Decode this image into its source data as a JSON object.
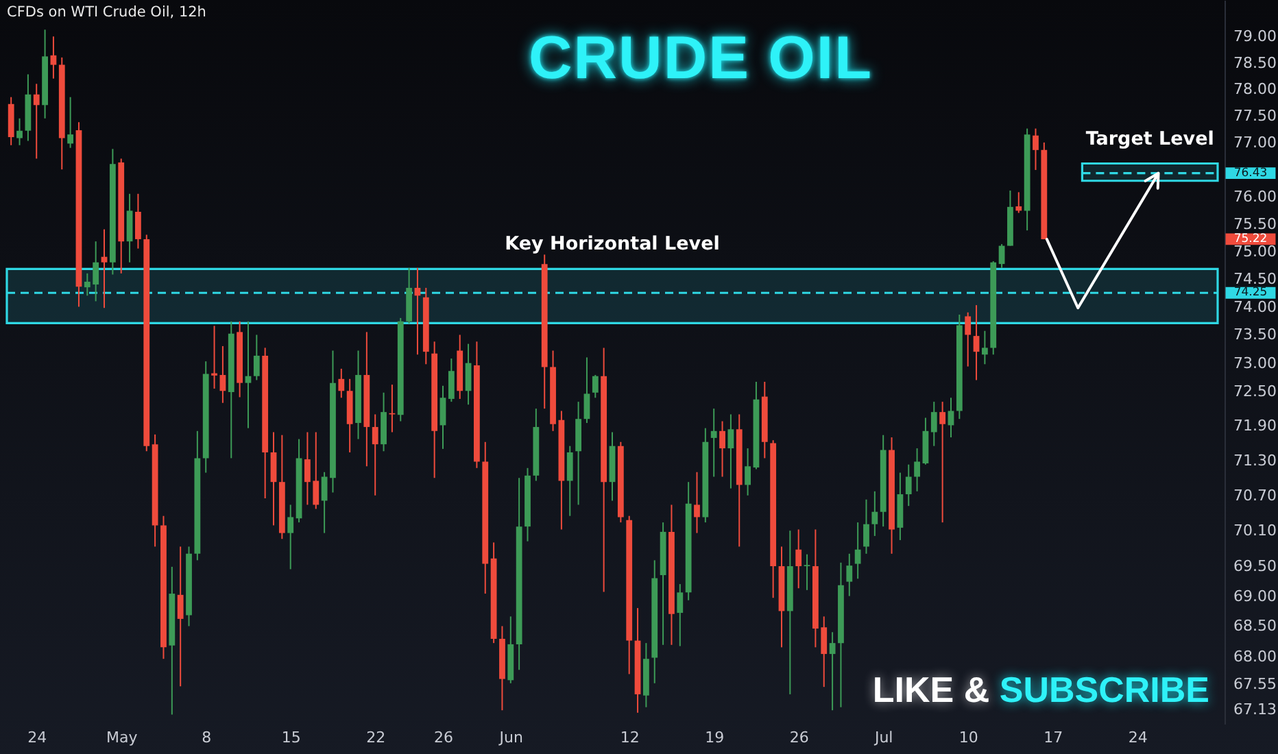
{
  "chart_data": {
    "type": "candlestick",
    "title": "CRUDE OIL",
    "subtitle": "CFDs on WTI Crude Oil, 12h",
    "categories": [
      null,
      null,
      null,
      "24",
      null,
      null,
      null,
      null,
      null,
      null,
      null,
      null,
      null,
      "May",
      null,
      null,
      null,
      null,
      null,
      null,
      null,
      null,
      null,
      "8",
      null,
      null,
      null,
      null,
      null,
      null,
      null,
      null,
      null,
      "15",
      null,
      null,
      null,
      null,
      null,
      null,
      null,
      null,
      null,
      "22",
      null,
      null,
      null,
      null,
      null,
      null,
      null,
      "26",
      null,
      null,
      null,
      null,
      null,
      null,
      null,
      "Jun",
      null,
      null,
      null,
      null,
      null,
      null,
      null,
      null,
      null,
      null,
      null,
      null,
      null,
      "12",
      null,
      null,
      null,
      null,
      null,
      null,
      null,
      null,
      null,
      "19",
      null,
      null,
      null,
      null,
      null,
      null,
      null,
      null,
      null,
      "26",
      null,
      null,
      null,
      null,
      null,
      null,
      null,
      null,
      null,
      "Jul",
      null,
      null,
      null,
      null,
      null,
      null,
      null,
      null,
      null,
      "10",
      null,
      null,
      null,
      null,
      null,
      null,
      null,
      null,
      null,
      "17",
      null,
      null,
      null,
      null,
      null,
      null,
      null,
      null,
      null,
      "24",
      null,
      null,
      null,
      null,
      null,
      null,
      null,
      null,
      null
    ],
    "ohlc": [
      [
        77.72,
        77.85,
        76.95,
        77.1
      ],
      [
        77.08,
        77.45,
        76.95,
        77.22
      ],
      [
        77.22,
        78.28,
        77.03,
        77.9
      ],
      [
        77.9,
        78.1,
        76.7,
        77.7
      ],
      [
        77.7,
        79.13,
        77.45,
        78.62
      ],
      [
        78.64,
        79.0,
        78.2,
        78.46
      ],
      [
        78.46,
        78.6,
        76.5,
        77.08
      ],
      [
        76.98,
        77.85,
        76.9,
        77.15
      ],
      [
        77.23,
        77.38,
        74.0,
        74.36
      ],
      [
        74.35,
        74.6,
        74.2,
        74.45
      ],
      [
        74.4,
        75.18,
        74.1,
        74.8
      ],
      [
        74.9,
        75.4,
        73.98,
        74.8
      ],
      [
        74.8,
        76.88,
        74.58,
        76.6
      ],
      [
        76.63,
        76.7,
        74.6,
        75.18
      ],
      [
        75.18,
        76.05,
        74.8,
        75.74
      ],
      [
        75.72,
        76.05,
        75.05,
        75.22
      ],
      [
        75.22,
        75.3,
        71.46,
        71.55
      ],
      [
        71.58,
        71.75,
        69.83,
        70.19
      ],
      [
        70.19,
        70.35,
        67.96,
        68.15
      ],
      [
        68.18,
        69.49,
        67.05,
        69.04
      ],
      [
        69.02,
        69.83,
        67.51,
        68.62
      ],
      [
        68.68,
        69.83,
        68.5,
        69.71
      ],
      [
        69.71,
        71.81,
        69.6,
        71.34
      ],
      [
        71.34,
        73.03,
        71.09,
        72.81
      ],
      [
        72.82,
        73.66,
        72.55,
        72.78
      ],
      [
        72.79,
        73.3,
        72.3,
        72.51
      ],
      [
        72.49,
        73.74,
        71.34,
        73.52
      ],
      [
        73.55,
        73.74,
        72.4,
        72.65
      ],
      [
        72.65,
        73.74,
        71.86,
        72.77
      ],
      [
        72.77,
        73.5,
        72.7,
        73.13
      ],
      [
        73.13,
        73.27,
        70.65,
        71.44
      ],
      [
        71.44,
        71.79,
        70.19,
        70.93
      ],
      [
        70.93,
        71.74,
        69.96,
        70.06
      ],
      [
        70.06,
        70.54,
        69.45,
        70.33
      ],
      [
        70.31,
        71.67,
        70.24,
        71.34
      ],
      [
        71.32,
        71.79,
        70.54,
        70.93
      ],
      [
        70.95,
        71.79,
        70.47,
        70.54
      ],
      [
        70.61,
        71.1,
        70.06,
        71.02
      ],
      [
        71.0,
        73.22,
        70.75,
        72.65
      ],
      [
        72.72,
        72.9,
        72.39,
        72.51
      ],
      [
        72.51,
        72.72,
        71.44,
        71.93
      ],
      [
        71.95,
        73.22,
        71.67,
        72.79
      ],
      [
        72.79,
        73.55,
        71.2,
        71.88
      ],
      [
        71.88,
        72.1,
        70.7,
        71.58
      ],
      [
        71.58,
        72.48,
        71.46,
        72.14
      ],
      [
        72.12,
        72.62,
        71.79,
        72.1
      ],
      [
        72.09,
        73.8,
        71.98,
        73.74
      ],
      [
        73.74,
        74.7,
        73.7,
        74.34
      ],
      [
        74.34,
        74.7,
        73.15,
        74.2
      ],
      [
        74.17,
        74.34,
        72.98,
        73.2
      ],
      [
        73.17,
        73.38,
        71.0,
        71.81
      ],
      [
        71.91,
        72.6,
        71.5,
        72.39
      ],
      [
        72.37,
        73.08,
        72.32,
        72.86
      ],
      [
        73.22,
        73.5,
        72.37,
        72.51
      ],
      [
        72.51,
        73.34,
        72.27,
        73.0
      ],
      [
        72.96,
        73.38,
        71.17,
        71.28
      ],
      [
        71.28,
        71.62,
        69.04,
        69.54
      ],
      [
        69.63,
        69.9,
        68.22,
        68.29
      ],
      [
        68.29,
        68.5,
        67.12,
        67.63
      ],
      [
        67.61,
        68.66,
        67.56,
        68.2
      ],
      [
        68.2,
        71.0,
        67.78,
        70.17
      ],
      [
        70.17,
        71.17,
        69.92,
        71.04
      ],
      [
        71.04,
        72.2,
        70.95,
        71.88
      ],
      [
        74.77,
        74.94,
        72.2,
        72.93
      ],
      [
        72.93,
        73.22,
        71.81,
        71.93
      ],
      [
        72.0,
        72.16,
        70.12,
        70.95
      ],
      [
        70.95,
        71.55,
        70.35,
        71.44
      ],
      [
        71.46,
        72.32,
        70.54,
        72.02
      ],
      [
        72.02,
        73.1,
        71.95,
        72.46
      ],
      [
        72.48,
        72.79,
        72.39,
        72.77
      ],
      [
        72.77,
        73.27,
        69.07,
        70.93
      ],
      [
        70.93,
        71.79,
        70.61,
        71.55
      ],
      [
        71.55,
        71.62,
        70.24,
        70.33
      ],
      [
        70.28,
        70.35,
        67.71,
        68.26
      ],
      [
        68.26,
        68.8,
        67.08,
        67.38
      ],
      [
        67.36,
        68.22,
        67.17,
        67.96
      ],
      [
        67.98,
        69.6,
        67.56,
        69.3
      ],
      [
        69.35,
        70.24,
        68.19,
        70.08
      ],
      [
        70.08,
        70.54,
        68.19,
        68.7
      ],
      [
        68.72,
        69.2,
        68.17,
        69.06
      ],
      [
        69.06,
        70.93,
        68.93,
        70.56
      ],
      [
        70.54,
        71.1,
        70.06,
        70.33
      ],
      [
        70.33,
        71.86,
        70.24,
        71.62
      ],
      [
        71.69,
        72.2,
        71.02,
        71.81
      ],
      [
        71.81,
        71.98,
        71.02,
        71.51
      ],
      [
        71.51,
        72.1,
        70.82,
        71.84
      ],
      [
        71.84,
        72.1,
        69.83,
        70.88
      ],
      [
        70.88,
        71.51,
        70.7,
        71.2
      ],
      [
        71.18,
        72.67,
        71.15,
        72.36
      ],
      [
        72.41,
        72.67,
        71.34,
        71.62
      ],
      [
        71.6,
        71.65,
        68.97,
        69.5
      ],
      [
        69.5,
        69.83,
        68.15,
        68.75
      ],
      [
        68.75,
        70.1,
        67.38,
        69.5
      ],
      [
        69.78,
        70.12,
        69.13,
        69.5
      ],
      [
        69.5,
        69.7,
        69.1,
        69.52
      ],
      [
        69.5,
        70.12,
        68.15,
        68.46
      ],
      [
        68.48,
        68.66,
        67.5,
        68.04
      ],
      [
        68.04,
        68.4,
        67.12,
        68.22
      ],
      [
        68.22,
        69.56,
        67.17,
        69.18
      ],
      [
        69.24,
        69.71,
        69.0,
        69.51
      ],
      [
        69.54,
        70.24,
        69.29,
        69.78
      ],
      [
        69.83,
        70.63,
        69.71,
        70.21
      ],
      [
        70.21,
        70.77,
        70.01,
        70.42
      ],
      [
        70.42,
        71.74,
        70.17,
        71.48
      ],
      [
        71.48,
        71.7,
        69.71,
        70.12
      ],
      [
        70.15,
        71.09,
        69.94,
        70.72
      ],
      [
        70.72,
        71.23,
        70.52,
        71.02
      ],
      [
        71.02,
        71.51,
        70.77,
        71.28
      ],
      [
        71.25,
        72.04,
        71.23,
        71.81
      ],
      [
        71.79,
        72.32,
        71.55,
        72.14
      ],
      [
        72.14,
        72.32,
        70.24,
        71.93
      ],
      [
        71.91,
        72.39,
        71.7,
        72.16
      ],
      [
        72.16,
        73.86,
        72.02,
        73.67
      ],
      [
        73.83,
        73.9,
        72.94,
        73.5
      ],
      [
        73.48,
        74.03,
        72.7,
        73.2
      ],
      [
        73.15,
        73.57,
        72.98,
        73.27
      ],
      [
        73.27,
        74.82,
        73.15,
        74.8
      ],
      [
        74.77,
        75.13,
        74.7,
        75.1
      ],
      [
        75.1,
        76.11,
        75.1,
        75.81
      ],
      [
        75.82,
        76.08,
        75.7,
        75.74
      ],
      [
        75.74,
        77.26,
        75.38,
        77.15
      ],
      [
        77.13,
        77.26,
        76.49,
        76.86
      ],
      [
        76.86,
        77.0,
        75.22,
        75.22
      ],
      null,
      null,
      null,
      null,
      null,
      null,
      null,
      null,
      null,
      null,
      null,
      null,
      null,
      null,
      null,
      null,
      null,
      null,
      null,
      null
    ],
    "colors": [
      "#ef4b3c",
      "#3d9b57",
      "#3d9b57",
      "#ef4b3c",
      "#3d9b57",
      "#ef4b3c",
      "#ef4b3c",
      "#3d9b57",
      "#ef4b3c",
      "#3d9b57",
      "#3d9b57",
      "#ef4b3c",
      "#3d9b57",
      "#ef4b3c",
      "#3d9b57",
      "#ef4b3c",
      "#ef4b3c",
      "#ef4b3c",
      "#ef4b3c",
      "#3d9b57",
      "#ef4b3c",
      "#3d9b57",
      "#3d9b57",
      "#3d9b57",
      "#ef4b3c",
      "#ef4b3c",
      "#3d9b57",
      "#ef4b3c",
      "#3d9b57",
      "#3d9b57",
      "#ef4b3c",
      "#ef4b3c",
      "#ef4b3c",
      "#3d9b57",
      "#3d9b57",
      "#ef4b3c",
      "#ef4b3c",
      "#3d9b57",
      "#3d9b57",
      "#ef4b3c",
      "#ef4b3c",
      "#3d9b57",
      "#ef4b3c",
      "#ef4b3c",
      "#3d9b57",
      "#ef4b3c",
      "#3d9b57",
      "#3d9b57",
      "#ef4b3c",
      "#ef4b3c",
      "#ef4b3c",
      "#3d9b57",
      "#3d9b57",
      "#ef4b3c",
      "#3d9b57",
      "#ef4b3c",
      "#ef4b3c",
      "#ef4b3c",
      "#ef4b3c",
      "#3d9b57",
      "#3d9b57",
      "#3d9b57",
      "#3d9b57",
      "#ef4b3c",
      "#ef4b3c",
      "#ef4b3c",
      "#3d9b57",
      "#3d9b57",
      "#3d9b57",
      "#3d9b57",
      "#ef4b3c",
      "#3d9b57",
      "#ef4b3c",
      "#ef4b3c",
      "#ef4b3c",
      "#3d9b57",
      "#3d9b57",
      "#3d9b57",
      "#ef4b3c",
      "#3d9b57",
      "#3d9b57",
      "#ef4b3c",
      "#3d9b57",
      "#3d9b57",
      "#ef4b3c",
      "#3d9b57",
      "#ef4b3c",
      "#3d9b57",
      "#3d9b57",
      "#ef4b3c",
      "#ef4b3c",
      "#ef4b3c",
      "#3d9b57",
      "#ef4b3c",
      "#3d9b57",
      "#ef4b3c",
      "#ef4b3c",
      "#3d9b57",
      "#3d9b57",
      "#3d9b57",
      "#3d9b57",
      "#3d9b57",
      "#3d9b57",
      "#3d9b57",
      "#ef4b3c",
      "#3d9b57",
      "#3d9b57",
      "#3d9b57",
      "#3d9b57",
      "#3d9b57",
      "#ef4b3c",
      "#3d9b57",
      "#3d9b57",
      "#ef4b3c",
      "#ef4b3c",
      "#3d9b57",
      "#3d9b57",
      "#3d9b57",
      "#3d9b57",
      "#ef4b3c",
      "#3d9b57",
      "#ef4b3c",
      "#ef4b3c",
      null,
      null,
      null,
      null,
      null,
      null,
      null,
      null,
      null,
      null,
      null,
      null,
      null,
      null,
      null,
      null,
      null,
      null,
      null,
      null
    ],
    "log": "y",
    "ylim": [
      66.9,
      79.7
    ],
    "yticks": [
      {
        "value": 67.13,
        "label": "67.13"
      },
      {
        "value": 67.55,
        "label": "67.55"
      },
      {
        "value": 68,
        "label": "68.00"
      },
      {
        "value": 68.5,
        "label": "68.50"
      },
      {
        "value": 69,
        "label": "69.00"
      },
      {
        "value": 69.5,
        "label": "69.50"
      },
      {
        "value": 70.1,
        "label": "70.10"
      },
      {
        "value": 70.7,
        "label": "70.70"
      },
      {
        "value": 71.3,
        "label": "71.30"
      },
      {
        "value": 71.9,
        "label": "71.90"
      },
      {
        "value": 72.5,
        "label": "72.50"
      },
      {
        "value": 73,
        "label": "73.00"
      },
      {
        "value": 73.5,
        "label": "73.50"
      },
      {
        "value": 74,
        "label": "74.00"
      },
      {
        "value": 74.5,
        "label": "74.50"
      },
      {
        "value": 75,
        "label": "75.00"
      },
      {
        "value": 75.5,
        "label": "75.50"
      },
      {
        "value": 76,
        "label": "76.00"
      },
      {
        "value": 77,
        "label": "77.00"
      },
      {
        "value": 77.5,
        "label": "77.50"
      },
      {
        "value": 78,
        "label": "78.00"
      },
      {
        "value": 78.5,
        "label": "78.50"
      },
      {
        "value": 79,
        "label": "79.00"
      }
    ],
    "bands": [
      {
        "axis": "y",
        "from": 73.71,
        "to": 74.68,
        "label": "Key Horizontal Level",
        "color": "#2fd8e4"
      },
      {
        "axis": "y",
        "from": 76.29,
        "to": 76.61,
        "label": "Target Level",
        "color": "#2fd8e4"
      }
    ],
    "ref_lines": [
      {
        "axis": "y",
        "value": 74.25,
        "label": "74.25",
        "color": "#2fd8e4",
        "line_style": "dashed"
      },
      {
        "axis": "y",
        "value": 76.43,
        "label": "76.43",
        "color": "#2fd8e4",
        "line_style": "dashed"
      }
    ],
    "annotations": [
      "75.22",
      "LIKE & SUBSCRIBE"
    ]
  }
}
